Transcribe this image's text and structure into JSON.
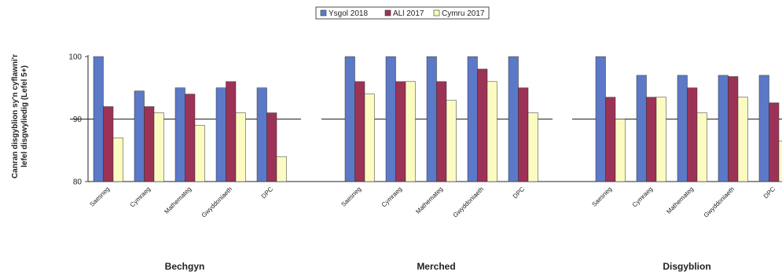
{
  "chart_data": {
    "type": "bar",
    "ylabel_lines": [
      "Canran disgyblion sy'n cyflawni'r",
      "lefel disgwyliedig (Lefel 5+)"
    ],
    "ylim": [
      80,
      100
    ],
    "yticks": [
      80,
      90,
      100
    ],
    "legend_position": "top-center",
    "grid": false,
    "groups": [
      {
        "name": "Bechgyn",
        "categories": [
          "Saesneg",
          "Cymraeg",
          "Mathemateg",
          "Gwyddoniaeth",
          "DPC"
        ]
      },
      {
        "name": "Merched",
        "categories": [
          "Saesneg",
          "Cymraeg",
          "Mathemateg",
          "Gwyddoniaeth",
          "DPC"
        ]
      },
      {
        "name": "Disgyblion",
        "categories": [
          "Saesneg",
          "Cymraeg",
          "Mathemateg",
          "Gwyddoniaeth",
          "DPC"
        ]
      }
    ],
    "series": [
      {
        "name": "Ysgol 2018",
        "color": "#5b79c6",
        "values": [
          100,
          94.5,
          95,
          95,
          95,
          100,
          100,
          100,
          100,
          100,
          100,
          97,
          97,
          97,
          97
        ]
      },
      {
        "name": "ALl 2017",
        "color": "#9c3356",
        "values": [
          92,
          92,
          94,
          96,
          91,
          96,
          96,
          96,
          98,
          95,
          93.5,
          93.5,
          95,
          96.8,
          92.6
        ]
      },
      {
        "name": "Cymru 2017",
        "color": "#fbfbc2",
        "values": [
          87,
          91,
          89,
          91,
          84,
          94,
          96,
          93,
          96,
          91,
          90,
          93.5,
          91,
          93.5,
          86.5
        ]
      }
    ]
  }
}
